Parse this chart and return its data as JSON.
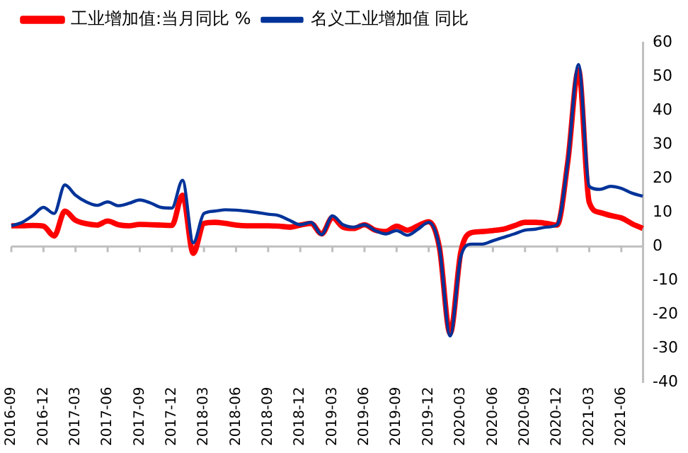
{
  "chart_data": {
    "type": "line",
    "categories": [
      "2016-09",
      null,
      null,
      "2016-12",
      null,
      null,
      "2017-03",
      null,
      null,
      "2017-06",
      null,
      null,
      "2017-09",
      null,
      null,
      "2017-12",
      null,
      null,
      "2018-03",
      null,
      null,
      "2018-06",
      null,
      null,
      "2018-09",
      null,
      null,
      "2018-12",
      null,
      null,
      "2019-03",
      null,
      null,
      "2019-06",
      null,
      null,
      "2019-09",
      null,
      null,
      "2019-12",
      null,
      null,
      "2020-03",
      null,
      null,
      "2020-06",
      null,
      null,
      "2020-09",
      null,
      null,
      "2020-12",
      null,
      null,
      "2021-03",
      null,
      null,
      "2021-06",
      null,
      null
    ],
    "series": [
      {
        "name": "工业增加值:当月同比 %",
        "color": "#ff0000",
        "values": [
          6.1,
          6.1,
          6.2,
          6.0,
          3.1,
          10.4,
          7.7,
          6.7,
          6.3,
          7.5,
          6.4,
          6.1,
          6.5,
          6.4,
          6.3,
          6.2,
          15.1,
          -2.0,
          6.8,
          7.1,
          6.8,
          6.3,
          6.1,
          6.1,
          6.1,
          6.0,
          5.7,
          6.3,
          6.8,
          3.7,
          8.5,
          5.7,
          5.3,
          6.4,
          4.8,
          4.4,
          6.0,
          4.8,
          6.1,
          7.3,
          -0.3,
          -25.6,
          -1.6,
          4.1,
          4.4,
          4.7,
          5.1,
          6.1,
          7.1,
          7.1,
          6.8,
          6.3,
          25,
          52,
          13,
          10,
          9.1,
          8.4,
          6.7,
          5.3
        ]
      },
      {
        "name": "名义工业增加值 同比",
        "color": "#003399",
        "values": [
          6.1,
          7.1,
          9.1,
          11.5,
          9.7,
          18.1,
          15.1,
          13.1,
          12.1,
          13.1,
          12.0,
          12.7,
          13.7,
          12.8,
          11.5,
          11.3,
          19.5,
          1.1,
          9.7,
          10.4,
          10.8,
          10.7,
          10.4,
          10.0,
          9.5,
          9.1,
          7.7,
          6.4,
          7.1,
          3.5,
          9.0,
          6.4,
          5.7,
          6.4,
          4.7,
          3.7,
          4.7,
          3.3,
          5.1,
          7.1,
          -0.3,
          -26.3,
          -2.9,
          0.7,
          0.7,
          1.7,
          2.7,
          3.7,
          4.8,
          5.1,
          5.7,
          6.4,
          25,
          53.5,
          17.7,
          16.8,
          17.7,
          17.1,
          15.7,
          14.8
        ]
      }
    ],
    "ylim": [
      -40,
      60
    ],
    "yticks": [
      -40,
      -30,
      -20,
      -10,
      0,
      10,
      20,
      30,
      40,
      50,
      60
    ],
    "ref_lines": [
      {
        "axis": "y",
        "value": 0,
        "color": "#bfbfbf"
      }
    ],
    "legend": "top",
    "grid": false
  }
}
